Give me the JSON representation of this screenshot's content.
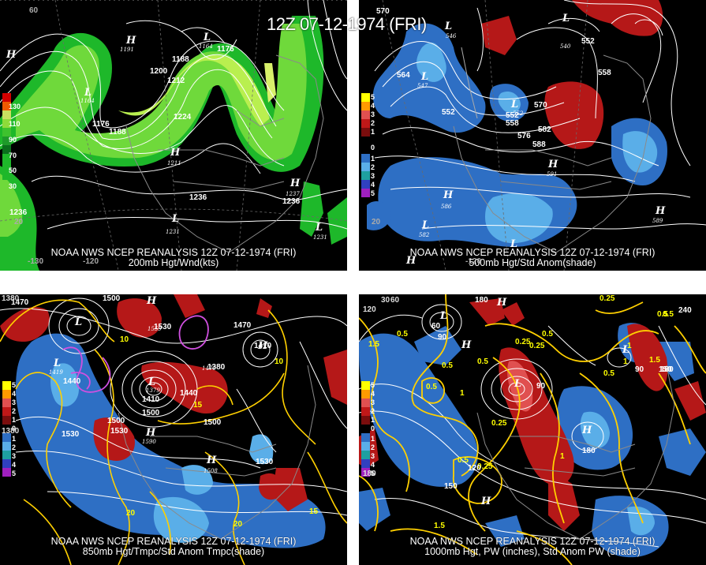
{
  "title": "12Z 07-12-1974 (FRI)",
  "panels": [
    {
      "credit": "NOAA NWS NCEP REANALYSIS 12Z 07-12-1974 (FRI)",
      "caption": "200mb Hgt/Wnd(kts)",
      "legend": [
        "130",
        "110",
        "90",
        "70",
        "50",
        "30"
      ],
      "labels": [
        "1188",
        "1200",
        "1212",
        "1224",
        "1176",
        "1188",
        "1176",
        "1236",
        "1236",
        "1236",
        "1211",
        "1237",
        "1231",
        "1231",
        "1164",
        "1191",
        "1164"
      ],
      "edge_labels": [
        "60",
        "20",
        "-130",
        "-120"
      ]
    },
    {
      "credit": "NOAA NWS NCEP REANALYSIS 12Z 07-12-1974 (FRI)",
      "caption": "500mb Hgt/Std Anom(shade)",
      "legend": [
        "5",
        "4",
        "3",
        "2",
        "1",
        "0",
        "1",
        "2",
        "3",
        "4",
        "5"
      ],
      "labels": [
        "570",
        "564",
        "552",
        "552",
        "558",
        "570",
        "582",
        "576",
        "588",
        "552",
        "558",
        "546",
        "540",
        "547",
        "552",
        "591",
        "586",
        "582",
        "589"
      ],
      "edge_labels": [
        "20",
        "-120"
      ]
    },
    {
      "credit": "NOAA NWS NCEP REANALYSIS 12Z 07-12-1974 (FRI)",
      "caption": "850mb Hgt/Tmpc/Std Anom Tmpc(shade)",
      "legend": [
        "5",
        "4",
        "3",
        "2",
        "1",
        "0",
        "1",
        "2",
        "3",
        "4",
        "5"
      ],
      "labels": [
        "1470",
        "1500",
        "1530",
        "1470",
        "1410",
        "1440",
        "1500",
        "1530",
        "1500",
        "1530",
        "1440",
        "1410",
        "1380",
        "1530",
        "1500",
        "1419",
        "1379",
        "1559",
        "1508",
        "1470",
        "1590",
        "10",
        "15",
        "20",
        "10",
        "15",
        "20"
      ],
      "edge_labels": [
        "1380",
        "1380"
      ]
    },
    {
      "credit": "NOAA NWS NCEP REANALYSIS 12Z 07-12-1974 (FRI)",
      "caption": "1000mb Hgt, PW (inches), Std Anom PW (shade)",
      "legend": [
        "5",
        "4",
        "3",
        "2",
        "1",
        "0",
        "1",
        "2",
        "3",
        "4",
        "5"
      ],
      "labels": [
        "180",
        "60",
        "90",
        "0.5",
        "0.25",
        "0.5",
        "1.5",
        "0.5",
        "0.25",
        "0.5",
        "1",
        "0.5",
        "0.25",
        "0.25",
        "150",
        "120",
        "90",
        "0.5",
        "1.5",
        "0.5",
        "1",
        "180",
        "90",
        "150",
        "1.5",
        "1",
        "0.5",
        "180",
        "240",
        "0.5",
        "0.25",
        "1"
      ],
      "edge_labels": [
        "30",
        "60",
        "120",
        "180"
      ]
    }
  ]
}
